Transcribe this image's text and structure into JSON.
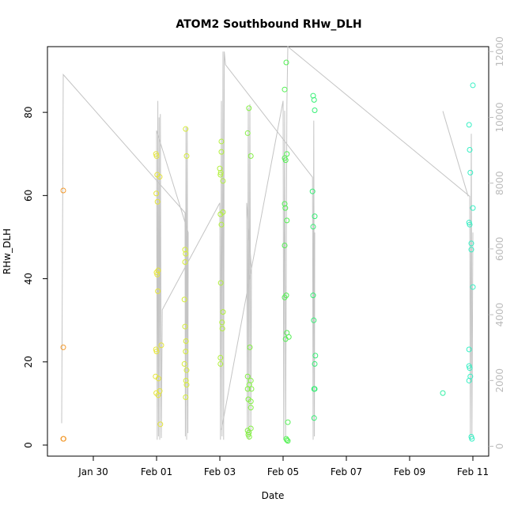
{
  "chart_data": {
    "type": "scatter",
    "title": "ATOM2 Southbound RHw_DLH",
    "x_label": "Date",
    "y_label": "RHw_DLH",
    "xlim": [
      28.55,
      42.5
    ],
    "ylim": [
      -2.66,
      95.8
    ],
    "y2lim": [
      -300,
      12150
    ],
    "xticks": [
      {
        "value": 30,
        "label": "Jan 30"
      },
      {
        "value": 32,
        "label": "Feb 01"
      },
      {
        "value": 34,
        "label": "Feb 03"
      },
      {
        "value": 36,
        "label": "Feb 05"
      },
      {
        "value": 38,
        "label": "Feb 07"
      },
      {
        "value": 40,
        "label": "Feb 09"
      },
      {
        "value": 42,
        "label": "Feb 11"
      }
    ],
    "yticks": [
      0,
      20,
      40,
      60,
      80
    ],
    "y2ticks": [
      0,
      2000,
      4000,
      6000,
      8000,
      10000,
      12000
    ],
    "series": [
      {
        "color": "#f29a2e",
        "x": [
          29.05,
          29.05,
          29.05,
          29.06
        ],
        "values": [
          61.2,
          23.5,
          1.5,
          1.5
        ]
      },
      {
        "color": "#e6e63a",
        "x": [
          31.98,
          32.0,
          32.02,
          32.1,
          31.99,
          32.03,
          32.05,
          32.0,
          32.02,
          32.04,
          32.15,
          31.98,
          32.0,
          31.97,
          32.06,
          32.1,
          31.99,
          32.05,
          32.12
        ],
        "values": [
          70,
          69.5,
          65,
          64.5,
          60.5,
          58.5,
          42,
          41.5,
          41,
          37,
          24,
          23,
          22.5,
          16.5,
          16,
          13,
          12.5,
          12,
          5
        ]
      },
      {
        "color": "#d6ec3a",
        "x": [
          32.92,
          32.95,
          32.9,
          32.92,
          32.9,
          32.88,
          32.9,
          32.93,
          32.92,
          32.88,
          32.95,
          32.93,
          32.95,
          32.92
        ],
        "values": [
          76,
          69.5,
          47,
          46,
          44,
          35,
          28.5,
          25,
          22.5,
          19.5,
          18,
          15.5,
          14.5,
          11.5
        ]
      },
      {
        "color": "#b2f03c",
        "x": [
          34.05,
          34.05,
          34.0,
          34.03,
          34.02,
          34.1,
          34.1,
          34.02,
          34.05,
          34.03,
          34.1,
          34.07,
          34.08,
          34.02,
          34.02
        ],
        "values": [
          73,
          70.5,
          66.5,
          65.5,
          65,
          63.5,
          56,
          55.5,
          53,
          39,
          32,
          29.5,
          28,
          21,
          19.5
        ]
      },
      {
        "color": "#84f044",
        "x": [
          34.92,
          34.88,
          34.98,
          34.95,
          34.88,
          34.98,
          34.93,
          34.88,
          35.0,
          34.9,
          34.98,
          34.98,
          34.98,
          34.88,
          34.92,
          34.9,
          34.93
        ],
        "values": [
          81,
          75,
          69.5,
          23.5,
          16.5,
          15.5,
          14.5,
          13.5,
          13.5,
          11,
          10.5,
          9,
          4,
          3.5,
          3,
          2.5,
          2
        ]
      },
      {
        "color": "#54f054",
        "x": [
          36.1,
          36.05,
          36.12,
          36.05,
          36.08,
          36.05,
          36.07,
          36.12,
          36.05,
          36.1,
          36.05,
          36.12,
          36.18,
          36.08,
          36.15,
          36.1,
          36.12,
          36.15
        ],
        "values": [
          92,
          85.5,
          70,
          69,
          68.5,
          58,
          57,
          54,
          48,
          36,
          35.5,
          27,
          26,
          25.5,
          5.5,
          1.5,
          1.2,
          1
        ]
      },
      {
        "color": "#36f075",
        "x": [
          36.95,
          36.98,
          37.0,
          36.93,
          37.0,
          36.95,
          36.95,
          36.97,
          37.02,
          37.0,
          36.98,
          37.0,
          36.98
        ],
        "values": [
          84,
          83,
          80.5,
          61,
          55,
          52.5,
          36,
          30,
          21.5,
          19.5,
          13.5,
          13.5,
          6.5
        ]
      },
      {
        "color": "#36f0a6",
        "x": [
          41.05
        ],
        "values": [
          12.5
        ]
      },
      {
        "color": "#36f0c4",
        "x": [
          42.0,
          41.88,
          41.9,
          41.92,
          42.0,
          41.88,
          41.9,
          41.95,
          41.95,
          42.0,
          41.88,
          41.88,
          41.9,
          41.92,
          41.88,
          41.95,
          41.97
        ],
        "values": [
          86.5,
          77,
          71,
          65.5,
          57,
          53.5,
          53,
          48.5,
          47,
          38,
          23,
          19,
          18.5,
          16.5,
          15.5,
          2,
          1.5
        ]
      }
    ],
    "line": {
      "color": "#c4c4c4",
      "axis": "y2",
      "x": [
        29.0,
        29.05,
        32.9,
        32.91,
        32.93,
        32.95,
        32.97,
        32.99,
        33.0,
        32.0,
        32.02,
        32.04,
        32.06,
        32.08,
        32.1,
        32.12,
        32.15,
        32.18,
        34.0,
        34.02,
        34.05,
        34.07,
        34.1,
        34.12,
        34.14,
        34.18,
        36.93,
        36.95,
        36.97,
        36.99,
        37.0,
        null,
        34.05,
        35.0,
        34.85,
        34.87,
        34.9,
        34.92,
        34.95,
        34.98,
        35.0,
        36.0,
        36.02,
        36.05,
        36.08,
        36.12,
        36.15,
        41.9,
        41.92,
        41.95,
        41.97,
        42.0,
        null,
        41.05,
        41.85
      ],
      "values": [
        700,
        11300,
        7100,
        300,
        9700,
        200,
        9700,
        400,
        6500,
        9600,
        200,
        10500,
        300,
        10000,
        200,
        10100,
        250,
        4150,
        7400,
        200,
        10500,
        300,
        12000,
        200,
        12000,
        11600,
        8180,
        200,
        9900,
        300,
        6500,
        null,
        500,
        5400,
        7400,
        300,
        10300,
        200,
        10400,
        400,
        5400,
        10500,
        200,
        10200,
        300,
        10400,
        12150,
        7600,
        200,
        9500,
        300,
        6500,
        null,
        10190,
        7600
      ]
    }
  }
}
